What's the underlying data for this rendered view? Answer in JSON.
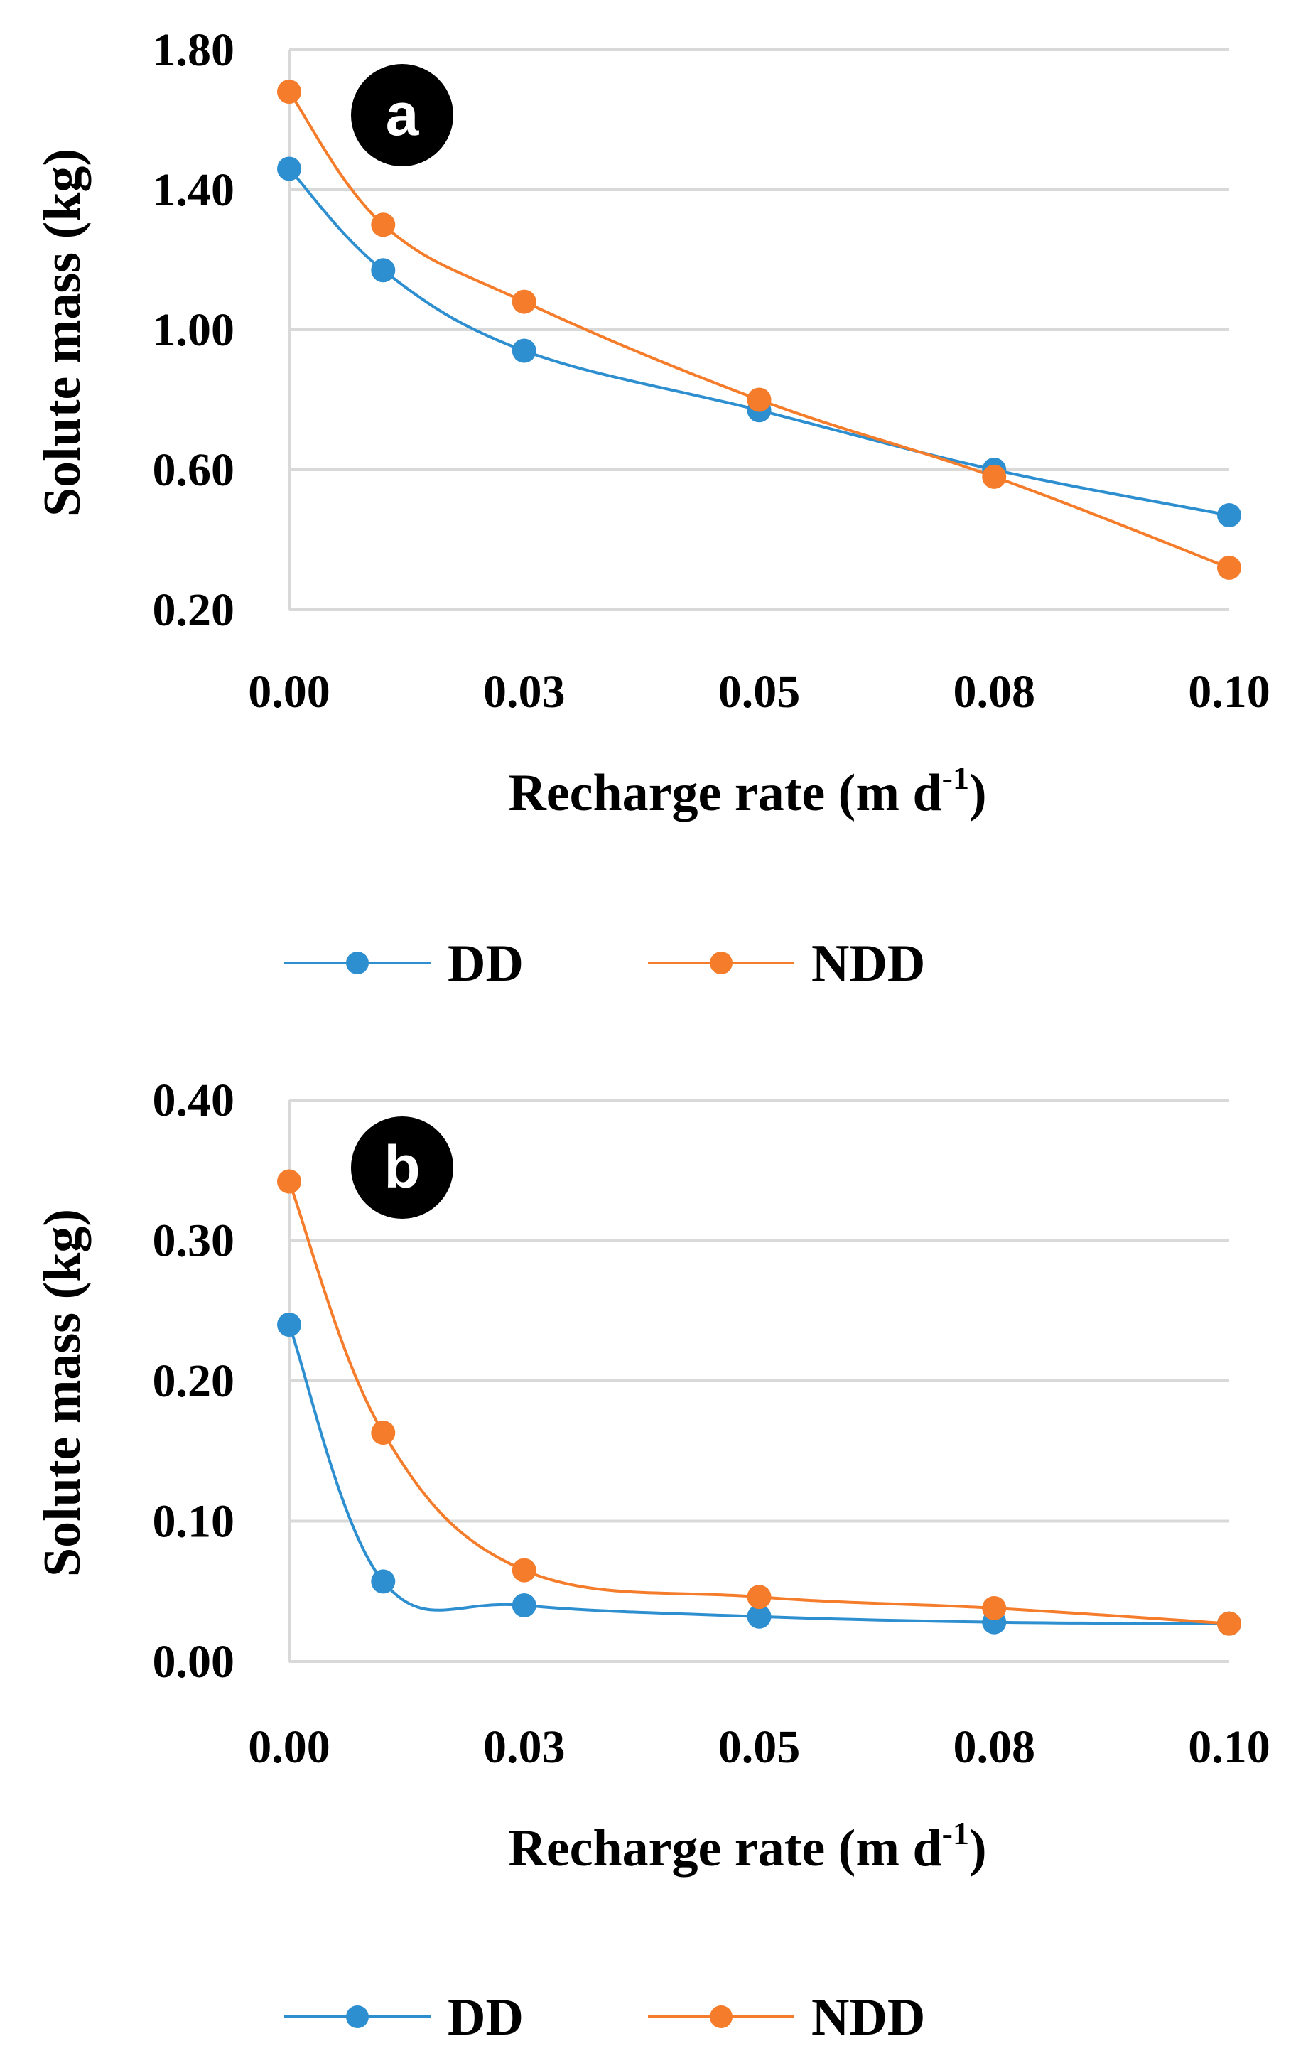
{
  "chart_data": [
    {
      "type": "line",
      "panel": "a",
      "xlabel": "Recharge rate (m d",
      "xlabel_sup": "-1",
      "xlabel_end": ")",
      "ylabel": "Solute mass (kg)",
      "x_tick_labels": [
        "0.00",
        "0.03",
        "0.05",
        "0.08",
        "0.10"
      ],
      "x_ticks": [
        0.0,
        0.025,
        0.05,
        0.075,
        0.1
      ],
      "xlim": [
        0,
        0.1
      ],
      "y_tick_labels": [
        "0.20",
        "0.60",
        "1.00",
        "1.40",
        "1.80"
      ],
      "y_ticks": [
        0.2,
        0.6,
        1.0,
        1.4,
        1.8
      ],
      "ylim": [
        0.2,
        1.8
      ],
      "x": [
        0.0,
        0.01,
        0.025,
        0.05,
        0.075,
        0.1
      ],
      "series": [
        {
          "name": "DD",
          "color": "#2e8fd0",
          "values": [
            1.46,
            1.17,
            0.94,
            0.77,
            0.6,
            0.47
          ]
        },
        {
          "name": "NDD",
          "color": "#f57c2a",
          "values": [
            1.68,
            1.3,
            1.08,
            0.8,
            0.58,
            0.32
          ]
        }
      ],
      "legend": "bottom"
    },
    {
      "type": "line",
      "panel": "b",
      "xlabel": "Recharge rate (m d",
      "xlabel_sup": "-1",
      "xlabel_end": ")",
      "ylabel": "Solute mass (kg)",
      "x_tick_labels": [
        "0.00",
        "0.03",
        "0.05",
        "0.08",
        "0.10"
      ],
      "x_ticks": [
        0.0,
        0.025,
        0.05,
        0.075,
        0.1
      ],
      "xlim": [
        0,
        0.1
      ],
      "y_tick_labels": [
        "0.00",
        "0.10",
        "0.20",
        "0.30",
        "0.40"
      ],
      "y_ticks": [
        0.0,
        0.1,
        0.2,
        0.3,
        0.4
      ],
      "ylim": [
        0,
        0.4
      ],
      "x": [
        0.0,
        0.01,
        0.025,
        0.05,
        0.075,
        0.1
      ],
      "series": [
        {
          "name": "DD",
          "color": "#2e8fd0",
          "values": [
            0.24,
            0.057,
            0.04,
            0.032,
            0.028,
            0.027
          ]
        },
        {
          "name": "NDD",
          "color": "#f57c2a",
          "values": [
            0.342,
            0.163,
            0.065,
            0.046,
            0.038,
            0.027
          ]
        }
      ],
      "legend": "bottom"
    }
  ]
}
